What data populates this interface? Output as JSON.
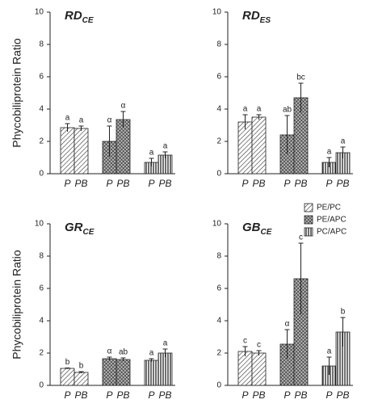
{
  "chart_data": [
    {
      "type": "bar",
      "title": "RD",
      "title_sub": "CE",
      "ylabel": "Phycobiliprotein Ratio",
      "categories": [
        "P",
        "PB"
      ],
      "ylim": [
        0,
        10
      ],
      "yticks": [
        0,
        2,
        4,
        6,
        8,
        10
      ],
      "series": [
        {
          "pattern": "diagonal",
          "values": [
            2.85,
            2.8
          ],
          "errors": [
            0.25,
            0.15
          ],
          "labels": [
            "a",
            "a"
          ]
        },
        {
          "pattern": "crosshatch",
          "values": [
            2.0,
            3.35
          ],
          "errors": [
            0.95,
            0.5
          ],
          "labels": [
            "α",
            "α"
          ]
        },
        {
          "pattern": "vertical",
          "values": [
            0.7,
            1.15
          ],
          "errors": [
            0.25,
            0.2
          ],
          "labels": [
            "a",
            "a"
          ]
        }
      ]
    },
    {
      "type": "bar",
      "title": "RD",
      "title_sub": "ES",
      "categories": [
        "P",
        "PB"
      ],
      "ylim": [
        0,
        10
      ],
      "yticks": [
        0,
        2,
        4,
        6,
        8,
        10
      ],
      "series": [
        {
          "pattern": "diagonal",
          "values": [
            3.2,
            3.5
          ],
          "errors": [
            0.45,
            0.15
          ],
          "labels": [
            "a",
            "a"
          ]
        },
        {
          "pattern": "crosshatch",
          "values": [
            2.4,
            4.7
          ],
          "errors": [
            1.2,
            0.9
          ],
          "labels": [
            "ab",
            "bc"
          ]
        },
        {
          "pattern": "vertical",
          "values": [
            0.7,
            1.3
          ],
          "errors": [
            0.3,
            0.35
          ],
          "labels": [
            "a",
            "a"
          ]
        }
      ]
    },
    {
      "type": "bar",
      "title": "GR",
      "title_sub": "CE",
      "ylabel": "Phycobiliprotein Ratio",
      "categories": [
        "P",
        "PB"
      ],
      "ylim": [
        0,
        10
      ],
      "yticks": [
        0,
        2,
        4,
        6,
        8,
        10
      ],
      "series": [
        {
          "pattern": "diagonal",
          "values": [
            1.05,
            0.8
          ],
          "errors": [
            0.03,
            0.05
          ],
          "labels": [
            "b",
            "b"
          ]
        },
        {
          "pattern": "crosshatch",
          "values": [
            1.65,
            1.6
          ],
          "errors": [
            0.1,
            0.1
          ],
          "labels": [
            "α",
            "ab"
          ]
        },
        {
          "pattern": "vertical",
          "values": [
            1.55,
            2.0
          ],
          "errors": [
            0.1,
            0.25
          ],
          "labels": [
            "a",
            "a"
          ]
        }
      ]
    },
    {
      "type": "bar",
      "title": "GB",
      "title_sub": "CE",
      "legend": "upper right",
      "categories": [
        "P",
        "PB"
      ],
      "ylim": [
        0,
        10
      ],
      "yticks": [
        0,
        2,
        4,
        6,
        8,
        10
      ],
      "series": [
        {
          "name": "PE/PC",
          "pattern": "diagonal",
          "values": [
            2.1,
            2.0
          ],
          "errors": [
            0.3,
            0.15
          ],
          "labels": [
            "c",
            "c"
          ]
        },
        {
          "name": "PE/APC",
          "pattern": "crosshatch",
          "values": [
            2.55,
            6.6
          ],
          "errors": [
            0.9,
            2.2
          ],
          "labels": [
            "α",
            "c"
          ]
        },
        {
          "name": "PC/APC",
          "pattern": "vertical",
          "values": [
            1.2,
            3.3
          ],
          "errors": [
            0.55,
            0.9
          ],
          "labels": [
            "a",
            "b"
          ]
        }
      ]
    }
  ]
}
